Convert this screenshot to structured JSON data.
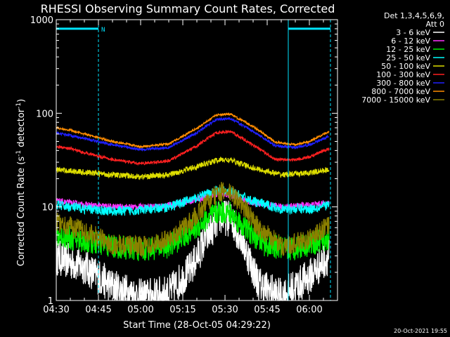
{
  "chart_data": {
    "type": "line",
    "title": "RHESSI Observing Summary Count Rates, Corrected",
    "xlabel": "Start Time (28-Oct-05 04:29:22)",
    "ylabel": "Corrected Count Rate (s",
    "ylabel_sup1": "-1",
    "ylabel_mid": " detector",
    "ylabel_sup2": "-1",
    "ylabel_end": ")",
    "x_unit": "minutes after 04:30 UT",
    "xlim": [
      0,
      100
    ],
    "ylim": [
      1,
      1000
    ],
    "y_scale": "log",
    "grid": false,
    "x_ticks": [
      {
        "t": 0,
        "label": "04:30"
      },
      {
        "t": 15,
        "label": "04:45"
      },
      {
        "t": 30,
        "label": "05:00"
      },
      {
        "t": 45,
        "label": "05:15"
      },
      {
        "t": 60,
        "label": "05:30"
      },
      {
        "t": 75,
        "label": "05:45"
      },
      {
        "t": 90,
        "label": "06:00"
      }
    ],
    "y_ticks": [
      {
        "v": 1,
        "label": "1"
      },
      {
        "v": 10,
        "label": "10"
      },
      {
        "v": 100,
        "label": "100"
      },
      {
        "v": 1000,
        "label": "1000"
      }
    ],
    "legend_header": [
      "Det 1,3,4,5,6,9,",
      "Att 0"
    ],
    "legend_placement": "right",
    "markers": [
      {
        "t": 0,
        "style": "solid",
        "color": "#00e5ff"
      },
      {
        "t": 15,
        "style": "dashed",
        "color": "#00e5ff"
      },
      {
        "t": 82.5,
        "style": "solid",
        "color": "#00e5ff"
      },
      {
        "t": 97.5,
        "style": "dashed",
        "color": "#00e5ff"
      }
    ],
    "night_bars": [
      {
        "t_start": 0,
        "t_end": 15,
        "y": 800,
        "label": "N"
      },
      {
        "t_start": 82.5,
        "t_end": 97.5,
        "y": 800,
        "label": ""
      }
    ],
    "series": [
      {
        "name": "3 - 6 keV",
        "color": "#ffffff",
        "base": 1.3,
        "peak": 8.0,
        "floor": 1.0,
        "noise": 0.45,
        "points": [
          [
            0,
            2.9
          ],
          [
            10,
            2.3
          ],
          [
            20,
            1.4
          ],
          [
            30,
            1.1
          ],
          [
            40,
            1.2
          ],
          [
            48,
            2.2
          ],
          [
            53,
            4.5
          ],
          [
            58,
            7.8
          ],
          [
            62,
            7.5
          ],
          [
            66,
            4.5
          ],
          [
            72,
            1.5
          ],
          [
            80,
            1.1
          ],
          [
            90,
            1.8
          ],
          [
            97,
            3.0
          ]
        ]
      },
      {
        "name": "6 - 12 keV",
        "color": "#ff33ff",
        "base": 11.0,
        "peak": 13.0,
        "floor": 8.0,
        "noise": 0.08,
        "points": [
          [
            0,
            11.5
          ],
          [
            10,
            10.5
          ],
          [
            20,
            10.0
          ],
          [
            30,
            10.0
          ],
          [
            40,
            10.3
          ],
          [
            50,
            12.0
          ],
          [
            58,
            14.0
          ],
          [
            62,
            13.5
          ],
          [
            70,
            11.0
          ],
          [
            80,
            10.0
          ],
          [
            90,
            10.5
          ],
          [
            97,
            11.0
          ]
        ]
      },
      {
        "name": "12 - 25 keV",
        "color": "#00ee00",
        "base": 4.0,
        "peak": 9.0,
        "floor": 2.5,
        "noise": 0.3,
        "points": [
          [
            0,
            5.0
          ],
          [
            10,
            4.3
          ],
          [
            20,
            3.8
          ],
          [
            30,
            3.5
          ],
          [
            40,
            3.8
          ],
          [
            48,
            5.5
          ],
          [
            54,
            7.5
          ],
          [
            58,
            9.0
          ],
          [
            62,
            8.5
          ],
          [
            67,
            6.0
          ],
          [
            74,
            4.0
          ],
          [
            82,
            3.5
          ],
          [
            90,
            4.0
          ],
          [
            97,
            4.5
          ]
        ]
      },
      {
        "name": "25 - 50 keV",
        "color": "#00ffff",
        "base": 10.0,
        "peak": 15.0,
        "floor": 7.0,
        "noise": 0.12,
        "points": [
          [
            0,
            10.5
          ],
          [
            10,
            9.5
          ],
          [
            20,
            9.0
          ],
          [
            30,
            9.2
          ],
          [
            40,
            10.0
          ],
          [
            50,
            12.5
          ],
          [
            57,
            15.0
          ],
          [
            62,
            14.5
          ],
          [
            70,
            11.5
          ],
          [
            80,
            9.5
          ],
          [
            90,
            9.5
          ],
          [
            97,
            10.5
          ]
        ]
      },
      {
        "name": "50 - 100 keV",
        "color": "#dddd00",
        "base": 25.0,
        "peak": 33.0,
        "floor": 18.0,
        "noise": 0.07,
        "points": [
          [
            0,
            25
          ],
          [
            10,
            23.5
          ],
          [
            20,
            22
          ],
          [
            30,
            21
          ],
          [
            40,
            22
          ],
          [
            50,
            27
          ],
          [
            58,
            32
          ],
          [
            62,
            31.5
          ],
          [
            70,
            26
          ],
          [
            80,
            22
          ],
          [
            90,
            23
          ],
          [
            97,
            25
          ]
        ]
      },
      {
        "name": "100 - 300 keV",
        "color": "#ff2020",
        "base": 44.0,
        "peak": 66.0,
        "floor": 28.0,
        "noise": 0.035,
        "points": [
          [
            0,
            44
          ],
          [
            5,
            42
          ],
          [
            10,
            38
          ],
          [
            20,
            32
          ],
          [
            30,
            29
          ],
          [
            40,
            31
          ],
          [
            50,
            45
          ],
          [
            57,
            62
          ],
          [
            62,
            64
          ],
          [
            70,
            46
          ],
          [
            78,
            32
          ],
          [
            85,
            32
          ],
          [
            90,
            34
          ],
          [
            97,
            42
          ]
        ]
      },
      {
        "name": "300 - 800 keV",
        "color": "#2020ff",
        "base": 60.0,
        "peak": 92.0,
        "floor": 40.0,
        "noise": 0.03,
        "points": [
          [
            0,
            62
          ],
          [
            5,
            58
          ],
          [
            10,
            54
          ],
          [
            20,
            46
          ],
          [
            30,
            41
          ],
          [
            40,
            43
          ],
          [
            50,
            62
          ],
          [
            57,
            86
          ],
          [
            62,
            88
          ],
          [
            70,
            64
          ],
          [
            78,
            45
          ],
          [
            85,
            43
          ],
          [
            90,
            46
          ],
          [
            97,
            57
          ]
        ]
      },
      {
        "name": "800 - 7000 keV",
        "color": "#ff8c00",
        "base": 70.0,
        "peak": 102.0,
        "floor": 44.0,
        "noise": 0.025,
        "points": [
          [
            0,
            70
          ],
          [
            5,
            66
          ],
          [
            10,
            60
          ],
          [
            20,
            50
          ],
          [
            30,
            44
          ],
          [
            40,
            47
          ],
          [
            50,
            69
          ],
          [
            57,
            96
          ],
          [
            62,
            98
          ],
          [
            70,
            72
          ],
          [
            78,
            49
          ],
          [
            85,
            46
          ],
          [
            90,
            50
          ],
          [
            97,
            64
          ]
        ]
      },
      {
        "name": "7000 - 15000 keV",
        "color": "#8b8000",
        "base": 6.0,
        "peak": 15.0,
        "floor": 3.5,
        "noise": 0.25,
        "points": [
          [
            0,
            7.0
          ],
          [
            10,
            5.5
          ],
          [
            20,
            4.0
          ],
          [
            30,
            3.8
          ],
          [
            40,
            4.5
          ],
          [
            48,
            7.0
          ],
          [
            53,
            10.5
          ],
          [
            58,
            14.5
          ],
          [
            62,
            14.0
          ],
          [
            66,
            10.5
          ],
          [
            72,
            6.0
          ],
          [
            80,
            3.8
          ],
          [
            90,
            4.5
          ],
          [
            97,
            6.5
          ]
        ]
      }
    ]
  },
  "footer_timestamp": "20-Oct-2021 19:55"
}
